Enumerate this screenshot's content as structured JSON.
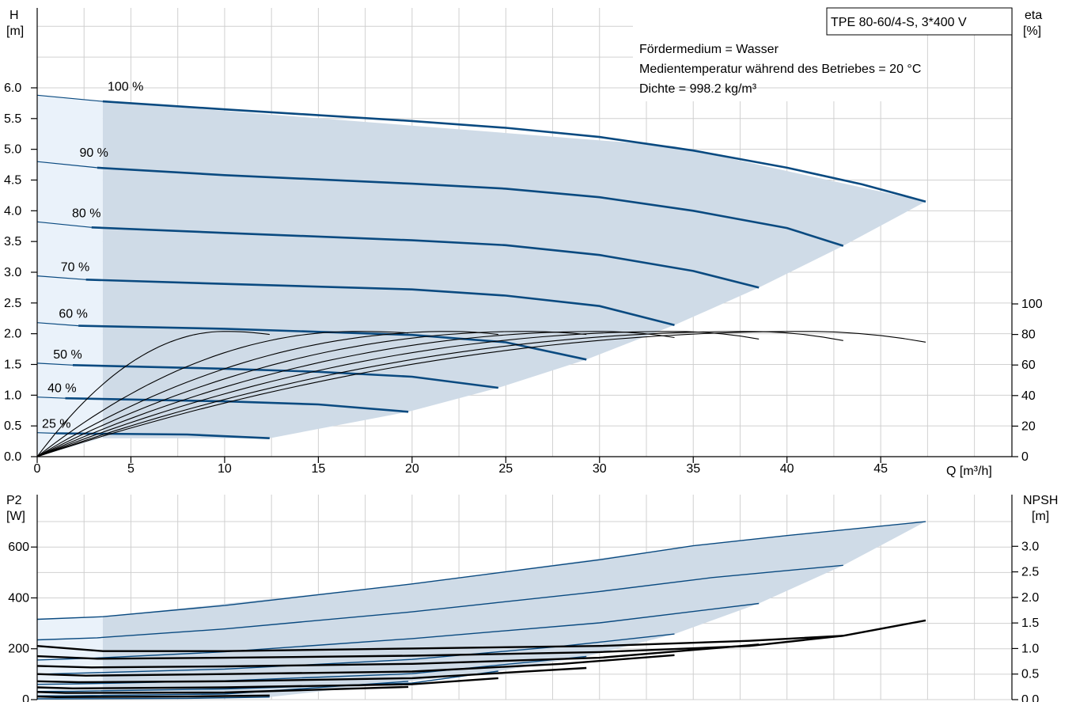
{
  "chart_data": [
    {
      "type": "line",
      "title": "TPE 80-60/4-S, 3*400 V",
      "info_lines": [
        "Fördermedium = Wasser",
        "Medientemperatur während des Betriebes = 20 °C",
        "Dichte = 998.2 kg/m³"
      ],
      "xlabel": "Q [m³/h]",
      "xlim": [
        0,
        52
      ],
      "xticks": [
        "0",
        "5",
        "10",
        "15",
        "20",
        "25",
        "30",
        "35",
        "40",
        "45"
      ],
      "ylabel_left": [
        "H",
        "[m]"
      ],
      "ylim_left": [
        0,
        6.0
      ],
      "yticks_left": [
        "0.0",
        "0.5",
        "1.0",
        "1.5",
        "2.0",
        "2.5",
        "3.0",
        "3.5",
        "4.0",
        "4.5",
        "5.0",
        "5.5",
        "6.0"
      ],
      "ylabel_right": [
        "eta",
        "[%]"
      ],
      "ylim_right": [
        0,
        100
      ],
      "yticks_right": [
        "0",
        "20",
        "40",
        "60",
        "80",
        "100"
      ],
      "grid": true,
      "operating_area": [
        [
          3.5,
          5.78
        ],
        [
          34,
          5.05
        ],
        [
          47.4,
          4.15
        ],
        [
          43,
          3.43
        ],
        [
          38.5,
          2.75
        ],
        [
          34,
          2.14
        ],
        [
          29.3,
          1.58
        ],
        [
          24.6,
          1.12
        ],
        [
          19.8,
          0.73
        ],
        [
          12.4,
          0.3
        ],
        [
          3.5,
          0.3
        ]
      ],
      "head_series": [
        {
          "name": "100 %",
          "points": [
            [
              0,
              5.88
            ],
            [
              3.5,
              5.78
            ],
            [
              10,
              5.65
            ],
            [
              20,
              5.46
            ],
            [
              25,
              5.35
            ],
            [
              30,
              5.2
            ],
            [
              35,
              4.98
            ],
            [
              40,
              4.7
            ],
            [
              44,
              4.43
            ],
            [
              47.4,
              4.15
            ]
          ]
        },
        {
          "name": "90 %",
          "points": [
            [
              0,
              4.8
            ],
            [
              3.2,
              4.7
            ],
            [
              10,
              4.58
            ],
            [
              20,
              4.44
            ],
            [
              25,
              4.36
            ],
            [
              30,
              4.22
            ],
            [
              35,
              4.0
            ],
            [
              40,
              3.72
            ],
            [
              43,
              3.43
            ]
          ]
        },
        {
          "name": "80 %",
          "points": [
            [
              0,
              3.82
            ],
            [
              2.9,
              3.73
            ],
            [
              10,
              3.64
            ],
            [
              20,
              3.52
            ],
            [
              25,
              3.44
            ],
            [
              30,
              3.28
            ],
            [
              35,
              3.02
            ],
            [
              38.5,
              2.75
            ]
          ]
        },
        {
          "name": "70 %",
          "points": [
            [
              0,
              2.94
            ],
            [
              2.6,
              2.88
            ],
            [
              10,
              2.81
            ],
            [
              20,
              2.72
            ],
            [
              25,
              2.62
            ],
            [
              30,
              2.45
            ],
            [
              34,
              2.14
            ]
          ]
        },
        {
          "name": "60 %",
          "points": [
            [
              0,
              2.18
            ],
            [
              2.2,
              2.13
            ],
            [
              10,
              2.08
            ],
            [
              20,
              1.98
            ],
            [
              25,
              1.86
            ],
            [
              29.3,
              1.58
            ]
          ]
        },
        {
          "name": "50 %",
          "points": [
            [
              0,
              1.52
            ],
            [
              1.9,
              1.49
            ],
            [
              10,
              1.43
            ],
            [
              15,
              1.38
            ],
            [
              20,
              1.3
            ],
            [
              24.6,
              1.12
            ]
          ]
        },
        {
          "name": "40 %",
          "points": [
            [
              0,
              0.97
            ],
            [
              1.5,
              0.95
            ],
            [
              10,
              0.9
            ],
            [
              15,
              0.85
            ],
            [
              19.8,
              0.73
            ]
          ]
        },
        {
          "name": "25 %",
          "points": [
            [
              0,
              0.39
            ],
            [
              1,
              0.38
            ],
            [
              8,
              0.36
            ],
            [
              12.4,
              0.3
            ]
          ]
        }
      ],
      "eta_series": [
        {
          "x_end": 12.4,
          "peak_x": 10,
          "end_value": 80
        },
        {
          "x_end": 19.8,
          "peak_x": 17,
          "end_value": 81
        },
        {
          "x_end": 24.6,
          "peak_x": 22,
          "end_value": 80
        },
        {
          "x_end": 29.3,
          "peak_x": 26,
          "end_value": 80
        },
        {
          "x_end": 34.0,
          "peak_x": 30,
          "end_value": 78
        },
        {
          "x_end": 38.5,
          "peak_x": 34,
          "end_value": 77
        },
        {
          "x_end": 43.0,
          "peak_x": 38,
          "end_value": 76
        },
        {
          "x_end": 47.4,
          "peak_x": 41,
          "end_value": 75
        }
      ],
      "eta_peak": 82
    },
    {
      "type": "line",
      "xlim": [
        0,
        52
      ],
      "ylabel_left": [
        "P2",
        "[W]"
      ],
      "ylim_left": [
        0,
        700
      ],
      "yticks_left": [
        "0",
        "200",
        "400",
        "600"
      ],
      "ylabel_right": [
        "NPSH",
        "[m]"
      ],
      "ylim_right": [
        0,
        3.5
      ],
      "yticks_right": [
        "0.0",
        "0.5",
        "1.0",
        "1.5",
        "2.0",
        "2.5",
        "3.0"
      ],
      "grid": true,
      "operating_area": [
        [
          3.5,
          326
        ],
        [
          20,
          455
        ],
        [
          35,
          605
        ],
        [
          47.4,
          700
        ],
        [
          43,
          528
        ],
        [
          38.5,
          378
        ],
        [
          34,
          258
        ],
        [
          29.3,
          170
        ],
        [
          24.6,
          112
        ],
        [
          19.8,
          72
        ],
        [
          12.4,
          10
        ],
        [
          3.5,
          5
        ]
      ],
      "power_series": [
        {
          "points": [
            [
              0,
              316
            ],
            [
              3.5,
              326
            ],
            [
              10,
              370
            ],
            [
              20,
              455
            ],
            [
              30,
              550
            ],
            [
              35,
              605
            ],
            [
              40,
              645
            ],
            [
              47.4,
              700
            ]
          ]
        },
        {
          "points": [
            [
              0,
              235
            ],
            [
              3.2,
              243
            ],
            [
              10,
              278
            ],
            [
              20,
              345
            ],
            [
              30,
              425
            ],
            [
              36,
              480
            ],
            [
              43,
              528
            ]
          ]
        },
        {
          "points": [
            [
              0,
              156
            ],
            [
              3,
              163
            ],
            [
              10,
              188
            ],
            [
              20,
              240
            ],
            [
              30,
              302
            ],
            [
              38.5,
              378
            ]
          ]
        },
        {
          "points": [
            [
              0,
              100
            ],
            [
              2.6,
              105
            ],
            [
              10,
              120
            ],
            [
              20,
              158
            ],
            [
              28,
              210
            ],
            [
              34,
              258
            ]
          ]
        },
        {
          "points": [
            [
              0,
              60
            ],
            [
              2.2,
              62
            ],
            [
              10,
              74
            ],
            [
              20,
              102
            ],
            [
              29.3,
              170
            ]
          ]
        },
        {
          "points": [
            [
              0,
              32
            ],
            [
              1.9,
              33
            ],
            [
              10,
              42
            ],
            [
              20,
              65
            ],
            [
              24.6,
              112
            ]
          ]
        },
        {
          "points": [
            [
              0,
              15
            ],
            [
              1.5,
              15
            ],
            [
              10,
              22
            ],
            [
              19.8,
              72
            ]
          ]
        },
        {
          "points": [
            [
              0,
              3
            ],
            [
              1,
              3
            ],
            [
              8,
              5
            ],
            [
              12.4,
              10
            ]
          ]
        }
      ],
      "npsh_series": [
        {
          "points": [
            [
              0,
              1.05
            ],
            [
              3.5,
              0.95
            ],
            [
              10,
              0.95
            ],
            [
              20,
              1.0
            ],
            [
              30,
              1.05
            ],
            [
              38,
              1.15
            ],
            [
              43,
              1.25
            ],
            [
              47.4,
              1.55
            ]
          ]
        },
        {
          "points": [
            [
              0,
              0.85
            ],
            [
              3.2,
              0.8
            ],
            [
              10,
              0.82
            ],
            [
              20,
              0.86
            ],
            [
              30,
              0.93
            ],
            [
              38,
              1.05
            ],
            [
              43,
              1.25
            ]
          ]
        },
        {
          "points": [
            [
              0,
              0.66
            ],
            [
              2.9,
              0.63
            ],
            [
              10,
              0.65
            ],
            [
              20,
              0.7
            ],
            [
              30,
              0.82
            ],
            [
              38.5,
              1.08
            ]
          ]
        },
        {
          "points": [
            [
              0,
              0.5
            ],
            [
              2.6,
              0.47
            ],
            [
              10,
              0.5
            ],
            [
              20,
              0.55
            ],
            [
              28,
              0.7
            ],
            [
              34,
              0.87
            ]
          ]
        },
        {
          "points": [
            [
              0,
              0.36
            ],
            [
              2.2,
              0.34
            ],
            [
              10,
              0.36
            ],
            [
              20,
              0.42
            ],
            [
              29.3,
              0.62
            ]
          ]
        },
        {
          "points": [
            [
              0,
              0.24
            ],
            [
              1.9,
              0.22
            ],
            [
              10,
              0.24
            ],
            [
              20,
              0.3
            ],
            [
              24.6,
              0.42
            ]
          ]
        },
        {
          "points": [
            [
              0,
              0.15
            ],
            [
              1.5,
              0.13
            ],
            [
              10,
              0.14
            ],
            [
              19.8,
              0.25
            ]
          ]
        },
        {
          "points": [
            [
              0,
              0.06
            ],
            [
              1,
              0.05
            ],
            [
              8,
              0.06
            ],
            [
              12.4,
              0.08
            ]
          ]
        }
      ]
    }
  ],
  "colors": {
    "curve": "#0a4a80",
    "area": "#cfdbe7",
    "area_light": "#eaf2fa",
    "eta": "#000000",
    "grid": "#d0d0d0"
  }
}
